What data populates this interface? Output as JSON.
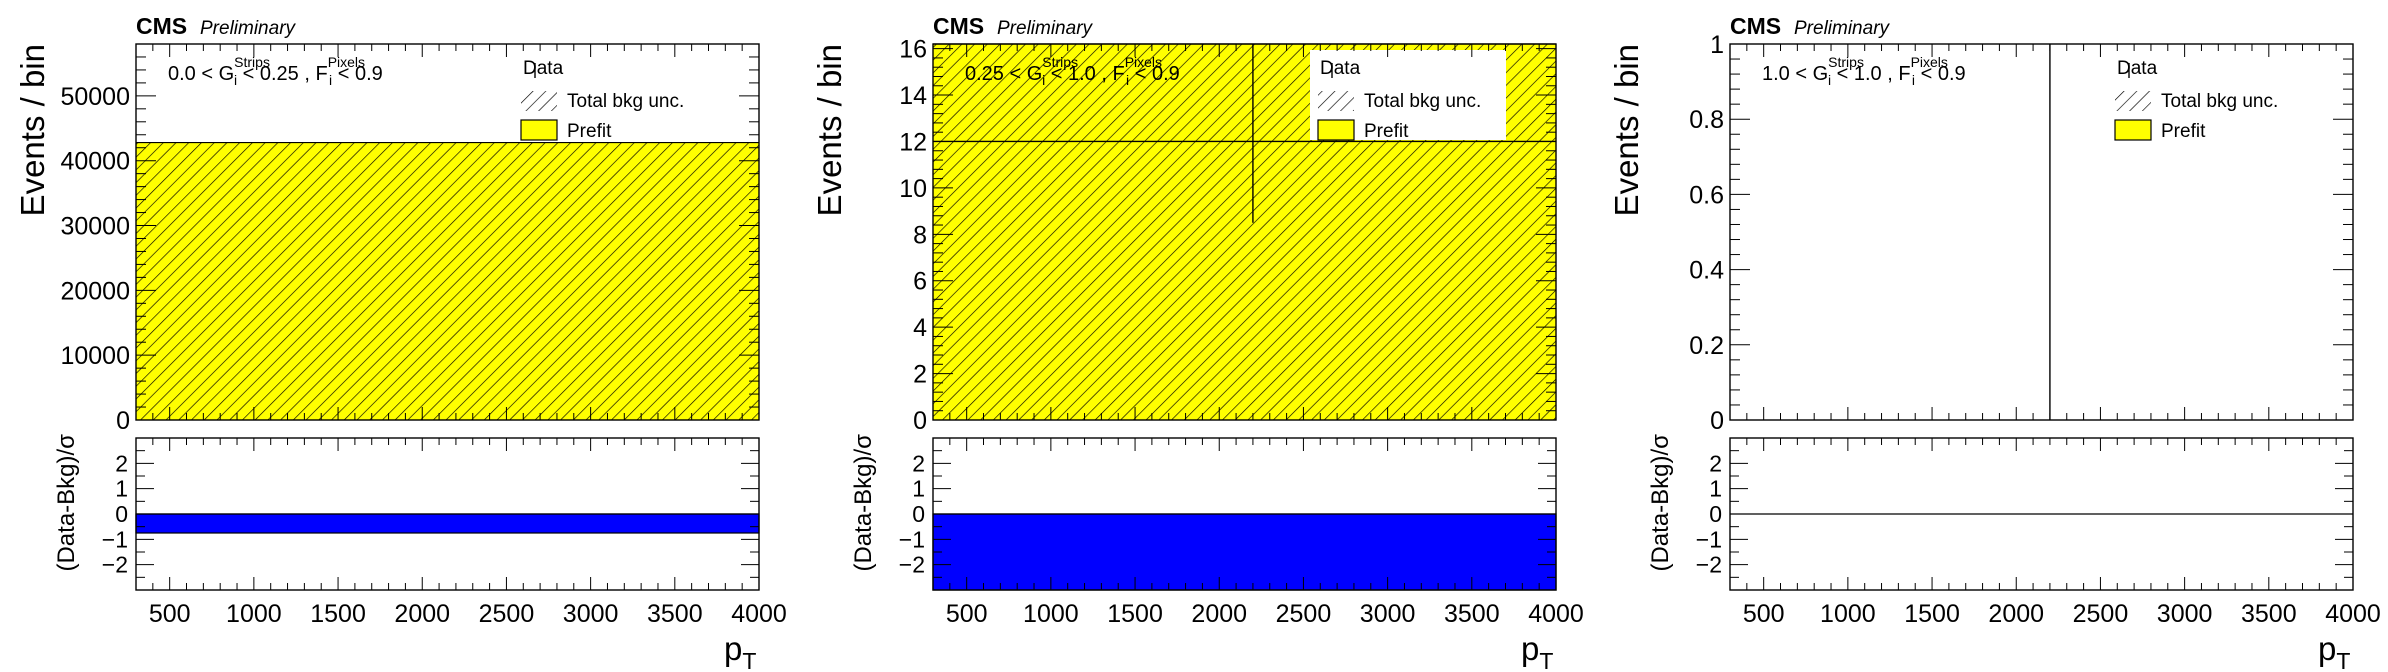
{
  "labels": {
    "experiment": "CMS",
    "status": "Preliminary",
    "legend_data": "Data",
    "legend_unc": "Total bkg unc.",
    "legend_prefit": "Prefit",
    "ylabel_top": "Events / bin",
    "ylabel_bottom": "(Data-Bkg)/σ",
    "xlabel": "p",
    "xlabel_sub": "T"
  },
  "colors": {
    "prefit_fill": "#ffff00",
    "pull_fill": "#0000ff",
    "hatch": "#000000",
    "axis": "#000000"
  },
  "chart_data": [
    {
      "type": "bar",
      "panel": "left",
      "region_label": {
        "a": "0.0 < G",
        "a_sup": "Strips",
        "a_sub": "i",
        "b": " < 0.25 , F",
        "b_sup": "Pixels",
        "b_sub": "i",
        "c": " < 0.9"
      },
      "xlim": [
        300,
        4000
      ],
      "ylim": [
        0,
        58000
      ],
      "xticks": [
        500,
        1000,
        1500,
        2000,
        2500,
        3000,
        3500,
        4000
      ],
      "yticks": [
        0,
        10000,
        20000,
        30000,
        40000,
        50000
      ],
      "prefit_bins": [
        {
          "x0": 300,
          "x1": 4000,
          "value": 42800
        }
      ],
      "data_points": [],
      "pull_ylim": [
        -3,
        3
      ],
      "pull_yticks": [
        -2,
        -1,
        0,
        1,
        2
      ],
      "pull_bins": [
        {
          "x0": 300,
          "x1": 4000,
          "value": -0.75
        }
      ]
    },
    {
      "type": "bar",
      "panel": "middle",
      "region_label": {
        "a": "0.25 < G",
        "a_sup": "Strips",
        "a_sub": "i",
        "b": " < 1.0 , F",
        "b_sup": "Pixels",
        "b_sub": "i",
        "c": " < 0.9"
      },
      "xlim": [
        300,
        4000
      ],
      "ylim": [
        0,
        16.2
      ],
      "xticks": [
        500,
        1000,
        1500,
        2000,
        2500,
        3000,
        3500,
        4000
      ],
      "yticks": [
        0,
        2,
        4,
        6,
        8,
        10,
        12,
        14,
        16
      ],
      "prefit_bins": [
        {
          "x0": 300,
          "x1": 4000,
          "value": 16.2
        }
      ],
      "data_points": [
        {
          "x": 2200,
          "y": 12,
          "ylow": 8.5,
          "yhigh": 16.2
        }
      ],
      "pull_ylim": [
        -3,
        3
      ],
      "pull_yticks": [
        -2,
        -1,
        0,
        1,
        2
      ],
      "pull_bins": [
        {
          "x0": 300,
          "x1": 4000,
          "value": -3
        }
      ]
    },
    {
      "type": "bar",
      "panel": "right",
      "region_label": {
        "a": "1.0 < G",
        "a_sup": "Strips",
        "a_sub": "i",
        "b": " < 1.0 , F",
        "b_sup": "Pixels",
        "b_sub": "i",
        "c": " < 0.9"
      },
      "xlim": [
        300,
        4000
      ],
      "ylim": [
        0,
        1
      ],
      "xticks": [
        500,
        1000,
        1500,
        2000,
        2500,
        3000,
        3500,
        4000
      ],
      "yticks": [
        0,
        0.2,
        0.4,
        0.6,
        0.8,
        1
      ],
      "prefit_bins": [],
      "data_points": [
        {
          "x": 2200,
          "y": 0,
          "ylow": 0,
          "yhigh": 1
        }
      ],
      "pull_ylim": [
        -3,
        3
      ],
      "pull_yticks": [
        -2,
        -1,
        0,
        1,
        2
      ],
      "pull_bins": [
        {
          "x0": 300,
          "x1": 4000,
          "value": 0
        }
      ]
    }
  ]
}
